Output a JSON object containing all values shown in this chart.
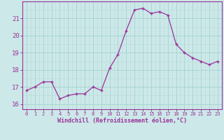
{
  "hours": [
    0,
    1,
    2,
    3,
    4,
    5,
    6,
    7,
    8,
    9,
    10,
    11,
    12,
    13,
    14,
    15,
    16,
    17,
    18,
    19,
    20,
    21,
    22,
    23
  ],
  "values": [
    16.8,
    17.0,
    17.3,
    17.3,
    16.3,
    16.5,
    16.6,
    16.6,
    17.0,
    16.8,
    18.1,
    18.9,
    20.3,
    21.5,
    21.6,
    21.3,
    21.4,
    21.2,
    19.5,
    19.0,
    18.7,
    18.5,
    18.3,
    18.5
  ],
  "line_color": "#993399",
  "marker_color": "#993399",
  "bg_color": "#cce8e8",
  "xlabel": "Windchill (Refroidissement éolien,°C)",
  "ylabel_ticks": [
    16,
    17,
    18,
    19,
    20,
    21
  ],
  "xlim": [
    -0.5,
    23.5
  ],
  "ylim": [
    15.7,
    22.0
  ],
  "xtick_labels": [
    "0",
    "1",
    "2",
    "3",
    "4",
    "5",
    "6",
    "7",
    "8",
    "9",
    "10",
    "11",
    "12",
    "13",
    "14",
    "15",
    "16",
    "17",
    "18",
    "19",
    "20",
    "21",
    "22",
    "23"
  ],
  "grid_color_major": "#aad4d4",
  "grid_color_minor": "#bbdddd",
  "axis_color": "#993399",
  "tick_color": "#993399",
  "label_color": "#993399"
}
